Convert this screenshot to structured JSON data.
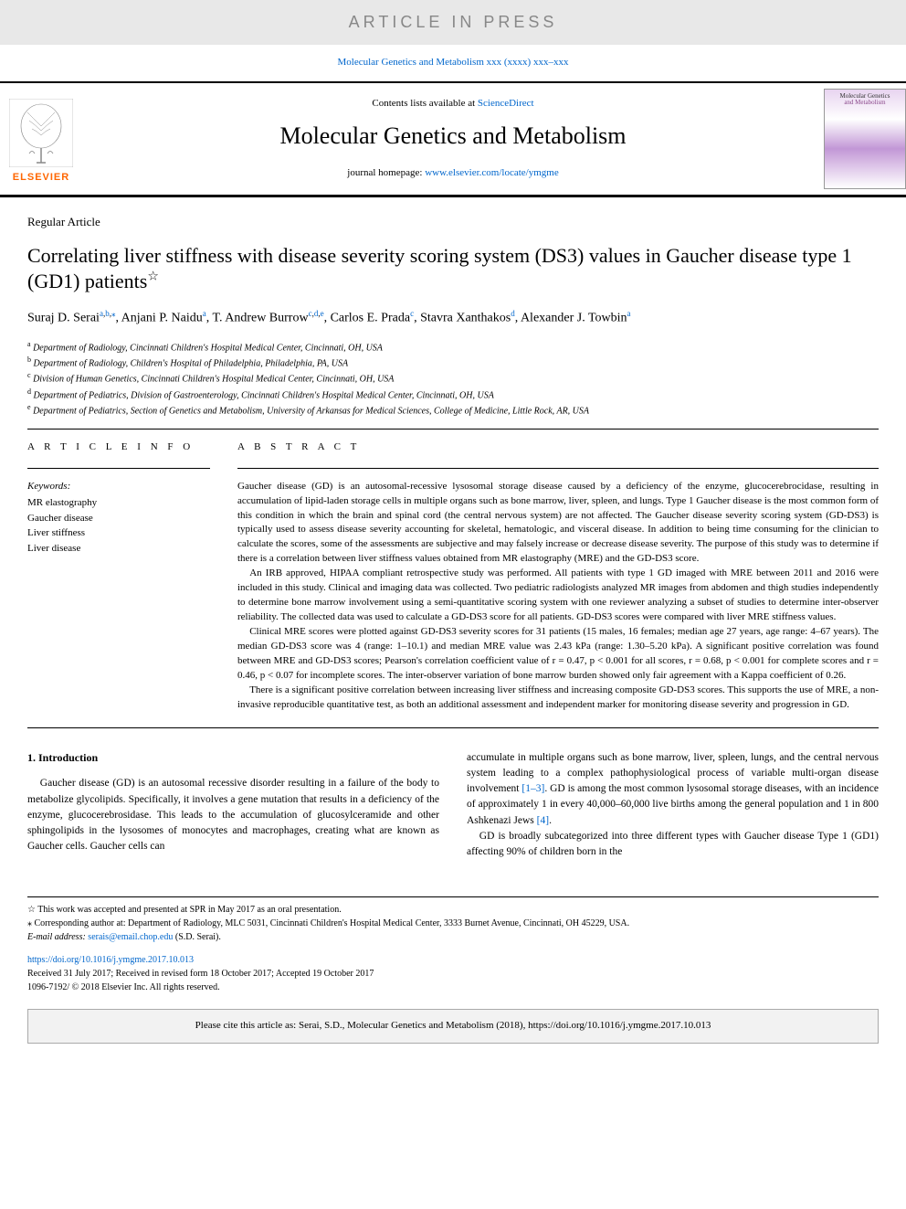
{
  "banner": {
    "text": "ARTICLE IN PRESS"
  },
  "journalRef": {
    "text": "Molecular Genetics and Metabolism xxx (xxxx) xxx–xxx",
    "link": "Molecular Genetics and Metabolism"
  },
  "header": {
    "contentsPrefix": "Contents lists available at ",
    "contentsLink": "ScienceDirect",
    "journalTitle": "Molecular Genetics and Metabolism",
    "homepagePrefix": "journal homepage: ",
    "homepageLink": "www.elsevier.com/locate/ymgme",
    "elsevierLabel": "ELSEVIER",
    "coverLine1": "Molecular Genetics",
    "coverLine2": "and Metabolism"
  },
  "article": {
    "type": "Regular Article",
    "title": "Correlating liver stiffness with disease severity scoring system (DS3) values in Gaucher disease type 1 (GD1) patients",
    "starNote": "☆",
    "authorsHtml": "Suraj D. Serai<sup><a>a</a>,<a>b</a>,</sup><sup><a>⁎</a></sup>, Anjani P. Naidu<sup><a>a</a></sup>, T. Andrew Burrow<sup><a>c</a>,<a>d</a>,<a>e</a></sup>, Carlos E. Prada<sup><a>c</a></sup>, Stavra Xanthakos<sup><a>d</a></sup>, Alexander J. Towbin<sup><a>a</a></sup>",
    "affiliations": [
      {
        "sup": "a",
        "text": "Department of Radiology, Cincinnati Children's Hospital Medical Center, Cincinnati, OH, USA"
      },
      {
        "sup": "b",
        "text": "Department of Radiology, Children's Hospital of Philadelphia, Philadelphia, PA, USA"
      },
      {
        "sup": "c",
        "text": "Division of Human Genetics, Cincinnati Children's Hospital Medical Center, Cincinnati, OH, USA"
      },
      {
        "sup": "d",
        "text": "Department of Pediatrics, Division of Gastroenterology, Cincinnati Children's Hospital Medical Center, Cincinnati, OH, USA"
      },
      {
        "sup": "e",
        "text": "Department of Pediatrics, Section of Genetics and Metabolism, University of Arkansas for Medical Sciences, College of Medicine, Little Rock, AR, USA"
      }
    ]
  },
  "info": {
    "heading": "A R T I C L E   I N F O",
    "keywordsLabel": "Keywords:",
    "keywords": [
      "MR elastography",
      "Gaucher disease",
      "Liver stiffness",
      "Liver disease"
    ]
  },
  "abstract": {
    "heading": "A B S T R A C T",
    "paragraphs": [
      "Gaucher disease (GD) is an autosomal-recessive lysosomal storage disease caused by a deficiency of the enzyme, glucocerebrocidase, resulting in accumulation of lipid-laden storage cells in multiple organs such as bone marrow, liver, spleen, and lungs. Type 1 Gaucher disease is the most common form of this condition in which the brain and spinal cord (the central nervous system) are not affected. The Gaucher disease severity scoring system (GD-DS3) is typically used to assess disease severity accounting for skeletal, hematologic, and visceral disease. In addition to being time consuming for the clinician to calculate the scores, some of the assessments are subjective and may falsely increase or decrease disease severity. The purpose of this study was to determine if there is a correlation between liver stiffness values obtained from MR elastography (MRE) and the GD-DS3 score.",
      "An IRB approved, HIPAA compliant retrospective study was performed. All patients with type 1 GD imaged with MRE between 2011 and 2016 were included in this study. Clinical and imaging data was collected. Two pediatric radiologists analyzed MR images from abdomen and thigh studies independently to determine bone marrow involvement using a semi-quantitative scoring system with one reviewer analyzing a subset of studies to determine inter-observer reliability. The collected data was used to calculate a GD-DS3 score for all patients. GD-DS3 scores were compared with liver MRE stiffness values.",
      "Clinical MRE scores were plotted against GD-DS3 severity scores for 31 patients (15 males, 16 females; median age 27 years, age range: 4–67 years). The median GD-DS3 score was 4 (range: 1–10.1) and median MRE value was 2.43 kPa (range: 1.30–5.20 kPa). A significant positive correlation was found between MRE and GD-DS3 scores; Pearson's correlation coefficient value of r = 0.47, p < 0.001 for all scores, r = 0.68, p < 0.001 for complete scores and r = 0.46, p < 0.07 for incomplete scores. The inter-observer variation of bone marrow burden showed only fair agreement with a Kappa coefficient of 0.26.",
      "There is a significant positive correlation between increasing liver stiffness and increasing composite GD-DS3 scores. This supports the use of MRE, a non-invasive reproducible quantitative test, as both an additional assessment and independent marker for monitoring disease severity and progression in GD."
    ]
  },
  "intro": {
    "heading": "1. Introduction",
    "col1p1": "Gaucher disease (GD) is an autosomal recessive disorder resulting in a failure of the body to metabolize glycolipids. Specifically, it involves a gene mutation that results in a deficiency of the enzyme, glucocerebrosidase. This leads to the accumulation of glucosylceramide and other sphingolipids in the lysosomes of monocytes and macrophages, creating what are known as Gaucher cells. Gaucher cells can",
    "col2p1": "accumulate in multiple organs such as bone marrow, liver, spleen, lungs, and the central nervous system leading to a complex pathophysiological process of variable multi-organ disease involvement ",
    "col2ref1": "[1–3]",
    "col2p1b": ". GD is among the most common lysosomal storage diseases, with an incidence of approximately 1 in every 40,000–60,000 live births among the general population and 1 in 800 Ashkenazi Jews ",
    "col2ref2": "[4]",
    "col2p1c": ".",
    "col2p2": "GD is broadly subcategorized into three different types with Gaucher disease Type 1 (GD1) affecting 90% of children born in the"
  },
  "footnotes": {
    "star": "☆ This work was accepted and presented at SPR in May 2017 as an oral presentation.",
    "corr": "⁎ Corresponding author at: Department of Radiology, MLC 5031, Cincinnati Children's Hospital Medical Center, 3333 Burnet Avenue, Cincinnati, OH 45229, USA.",
    "emailLabel": "E-mail address: ",
    "email": "serais@email.chop.edu",
    "emailSuffix": " (S.D. Serai)."
  },
  "doi": {
    "link": "https://doi.org/10.1016/j.ymgme.2017.10.013",
    "received": "Received 31 July 2017; Received in revised form 18 October 2017; Accepted 19 October 2017",
    "copyright": "1096-7192/ © 2018 Elsevier Inc. All rights reserved."
  },
  "citeBox": "Please cite this article as: Serai, S.D., Molecular Genetics and Metabolism (2018), https://doi.org/10.1016/j.ymgme.2017.10.013"
}
